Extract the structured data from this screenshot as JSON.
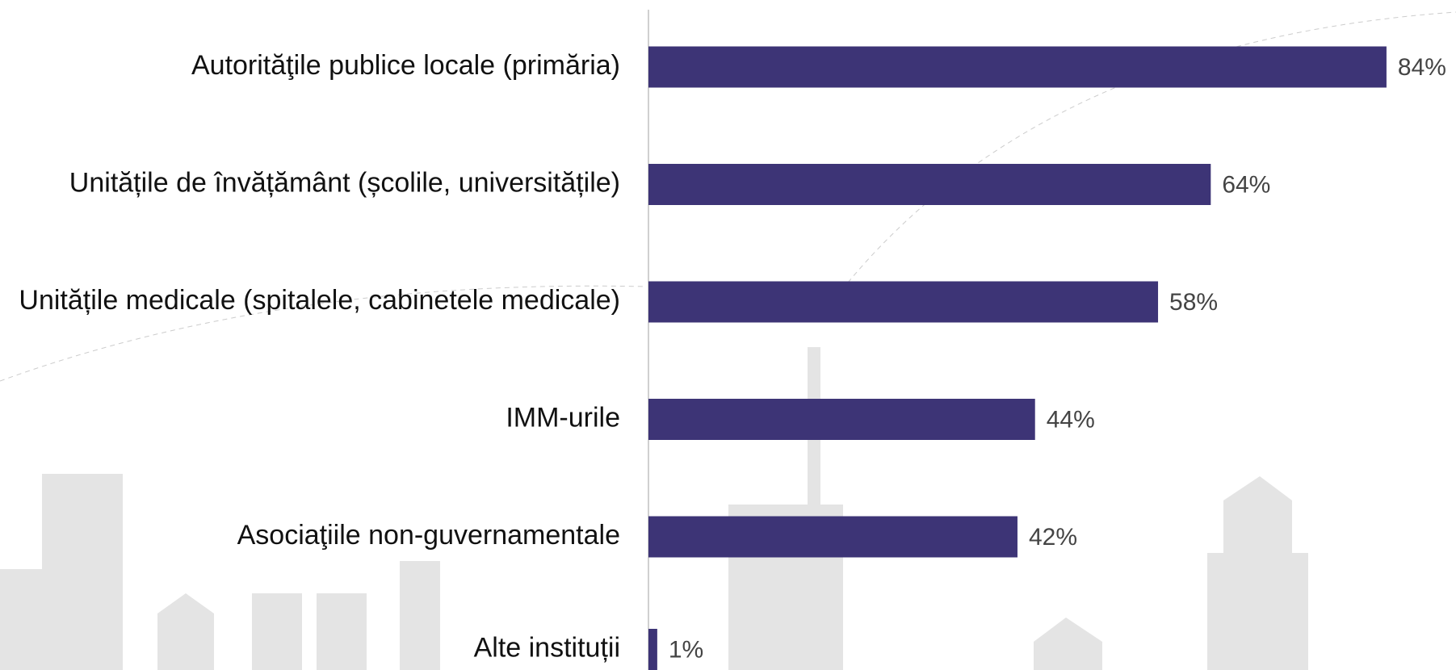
{
  "chart_data": {
    "type": "bar",
    "orientation": "horizontal",
    "categories": [
      "Autorităţile publice locale (primăria)",
      "Unitățile de învățământ (școlile, universitățile)",
      "Unitățile medicale (spitalele, cabinetele medicale)",
      "IMM-urile",
      "Asociaţiile non-guvernamentale",
      "Alte instituții"
    ],
    "values": [
      84,
      64,
      58,
      44,
      42,
      1
    ],
    "value_labels": [
      "84%",
      "64%",
      "58%",
      "44%",
      "42%",
      "1%"
    ],
    "color": "#3d3476"
  }
}
